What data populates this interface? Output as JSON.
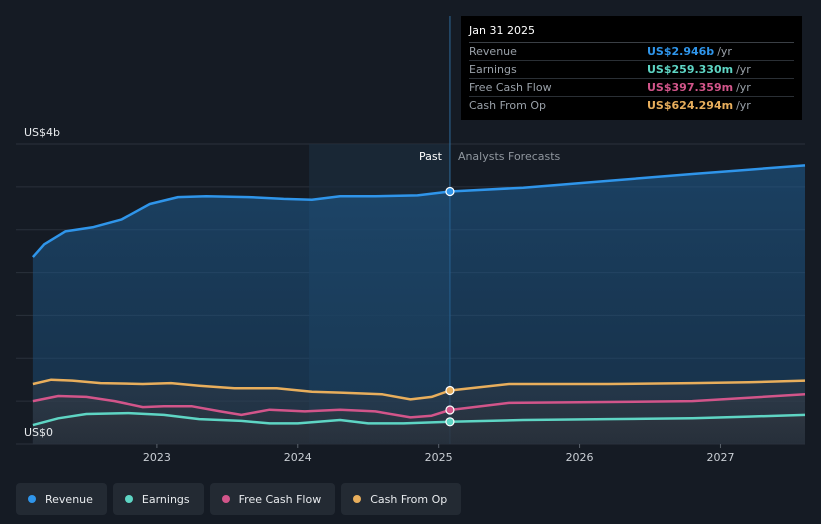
{
  "chart_data": {
    "type": "area",
    "y_unit_labels": [
      "US$0",
      "US$4b"
    ],
    "ylim": [
      0,
      3.5
    ],
    "x_ticks": [
      "2023",
      "2024",
      "2025",
      "2026",
      "2027"
    ],
    "x_tick_values": [
      2023.0,
      2024.0,
      2025.0,
      2026.0,
      2027.0
    ],
    "xlim": [
      2022.0,
      2027.6
    ],
    "divider_x": 2025.08,
    "highlight_start_x": 2024.08,
    "past_label": "Past",
    "forecast_label": "Analysts Forecasts",
    "series": [
      {
        "name": "Revenue",
        "color": "#2f95ea",
        "x": [
          2022.12,
          2022.2,
          2022.35,
          2022.55,
          2022.75,
          2022.95,
          2023.15,
          2023.35,
          2023.65,
          2023.9,
          2024.1,
          2024.3,
          2024.55,
          2024.85,
          2025.08,
          2025.6,
          2026.2,
          2026.8,
          2027.2,
          2027.6
        ],
        "y": [
          2.18,
          2.33,
          2.48,
          2.53,
          2.62,
          2.8,
          2.88,
          2.89,
          2.88,
          2.86,
          2.85,
          2.89,
          2.89,
          2.9,
          2.946,
          2.99,
          3.07,
          3.15,
          3.2,
          3.25
        ]
      },
      {
        "name": "Earnings",
        "color": "#5ed5c4",
        "x": [
          2022.12,
          2022.3,
          2022.5,
          2022.8,
          2023.05,
          2023.3,
          2023.6,
          2023.8,
          2024.0,
          2024.3,
          2024.5,
          2024.75,
          2024.9,
          2025.08,
          2025.6,
          2026.2,
          2026.8,
          2027.2,
          2027.6
        ],
        "y": [
          0.22,
          0.3,
          0.35,
          0.36,
          0.34,
          0.29,
          0.27,
          0.24,
          0.24,
          0.28,
          0.24,
          0.24,
          0.25,
          0.259,
          0.28,
          0.29,
          0.3,
          0.32,
          0.34
        ]
      },
      {
        "name": "Free Cash Flow",
        "color": "#d2558a",
        "x": [
          2022.12,
          2022.3,
          2022.5,
          2022.7,
          2022.9,
          2023.05,
          2023.25,
          2023.45,
          2023.6,
          2023.8,
          2024.05,
          2024.3,
          2024.55,
          2024.8,
          2024.95,
          2025.08,
          2025.5,
          2026.2,
          2026.8,
          2027.2,
          2027.6
        ],
        "y": [
          0.5,
          0.56,
          0.55,
          0.5,
          0.43,
          0.44,
          0.44,
          0.38,
          0.34,
          0.4,
          0.38,
          0.4,
          0.38,
          0.31,
          0.33,
          0.397,
          0.48,
          0.49,
          0.5,
          0.54,
          0.58
        ]
      },
      {
        "name": "Cash From Op",
        "color": "#e8ae5c",
        "x": [
          2022.12,
          2022.25,
          2022.4,
          2022.6,
          2022.9,
          2023.1,
          2023.3,
          2023.55,
          2023.85,
          2024.1,
          2024.3,
          2024.6,
          2024.8,
          2024.95,
          2025.08,
          2025.5,
          2026.2,
          2026.8,
          2027.2,
          2027.6
        ],
        "y": [
          0.7,
          0.75,
          0.74,
          0.71,
          0.7,
          0.71,
          0.68,
          0.65,
          0.65,
          0.61,
          0.6,
          0.58,
          0.52,
          0.55,
          0.624,
          0.7,
          0.7,
          0.71,
          0.72,
          0.74
        ]
      }
    ]
  },
  "tooltip": {
    "date": "Jan 31 2025",
    "rows": [
      {
        "name": "Revenue",
        "value": "US$2.946b",
        "unit": "/yr",
        "color": "#2f95ea"
      },
      {
        "name": "Earnings",
        "value": "US$259.330m",
        "unit": "/yr",
        "color": "#5ed5c4"
      },
      {
        "name": "Free Cash Flow",
        "value": "US$397.359m",
        "unit": "/yr",
        "color": "#d2558a"
      },
      {
        "name": "Cash From Op",
        "value": "US$624.294m",
        "unit": "/yr",
        "color": "#e8ae5c"
      }
    ]
  },
  "legend": [
    {
      "label": "Revenue",
      "color": "#2f95ea"
    },
    {
      "label": "Earnings",
      "color": "#5ed5c4"
    },
    {
      "label": "Free Cash Flow",
      "color": "#d2558a"
    },
    {
      "label": "Cash From Op",
      "color": "#e8ae5c"
    }
  ]
}
